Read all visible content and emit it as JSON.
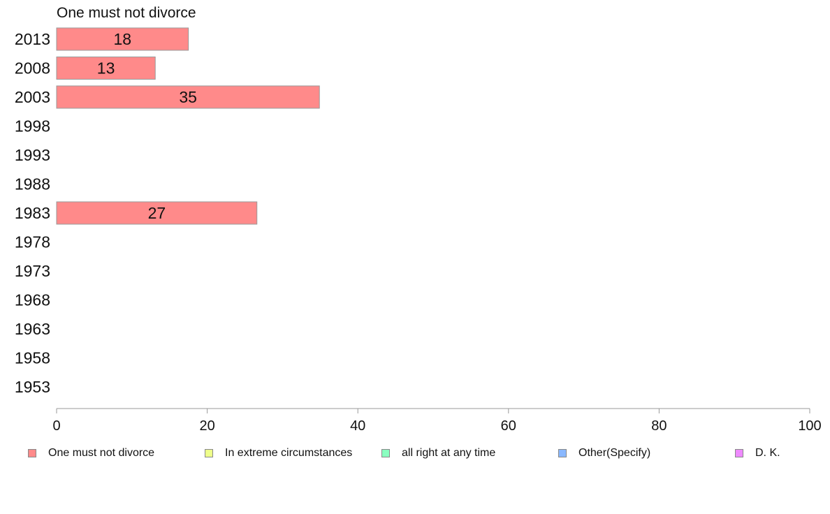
{
  "chart_data": {
    "type": "bar",
    "orientation": "horizontal",
    "title": "One must not divorce",
    "categories": [
      "2013",
      "2008",
      "2003",
      "1998",
      "1993",
      "1988",
      "1983",
      "1978",
      "1973",
      "1968",
      "1963",
      "1958",
      "1953"
    ],
    "series": [
      {
        "name": "One must not divorce",
        "color": "#ff8a8a",
        "values": [
          17.5,
          13.1,
          34.9,
          null,
          null,
          null,
          26.6,
          null,
          null,
          null,
          null,
          null,
          null
        ],
        "labels": [
          "18",
          "13",
          "35",
          "",
          "",
          "",
          "27",
          "",
          "",
          "",
          "",
          "",
          ""
        ]
      }
    ],
    "xlim": [
      0,
      100
    ],
    "xticks": [
      0,
      20,
      40,
      60,
      80,
      100
    ],
    "xtick_labels": [
      "0",
      "20",
      "40",
      "60",
      "80",
      "100"
    ],
    "grid": false,
    "legend_position": "bottom",
    "legend": [
      {
        "label": "One must not divorce",
        "color": "#ff8a8a"
      },
      {
        "label": "In extreme circumstances",
        "color": "#eeff8a"
      },
      {
        "label": "all right at any time",
        "color": "#8affc0"
      },
      {
        "label": "Other(Specify)",
        "color": "#8ab8ff"
      },
      {
        "label": "D. K.",
        "color": "#ee8aff"
      }
    ]
  }
}
